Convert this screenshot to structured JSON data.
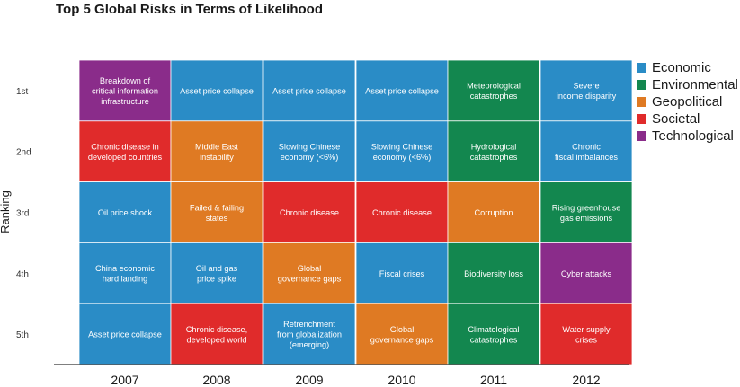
{
  "chart_data": {
    "type": "table",
    "title": "Top 5 Global Risks in Terms of Likelihood",
    "ylabel": "Ranking",
    "xlabel": "",
    "ranks": [
      "1st",
      "2nd",
      "3rd",
      "4th",
      "5th"
    ],
    "categories": [
      "2007",
      "2008",
      "2009",
      "2010",
      "2011",
      "2012"
    ],
    "legend_placement": "right",
    "legend": [
      {
        "name": "Economic",
        "color": "#2a8cc6"
      },
      {
        "name": "Environmental",
        "color": "#13874f"
      },
      {
        "name": "Geopolitical",
        "color": "#df7a23"
      },
      {
        "name": "Societal",
        "color": "#e02b2b"
      },
      {
        "name": "Technological",
        "color": "#8a2c8a"
      }
    ],
    "columns": [
      {
        "year": "2007",
        "cells": [
          {
            "label": "Breakdown of\ncritical information\ninfrastructure",
            "category": "Technological"
          },
          {
            "label": "Chronic disease in\ndeveloped countries",
            "category": "Societal"
          },
          {
            "label": "Oil price shock",
            "category": "Economic"
          },
          {
            "label": "China economic\nhard landing",
            "category": "Economic"
          },
          {
            "label": "Asset price collapse",
            "category": "Economic"
          }
        ]
      },
      {
        "year": "2008",
        "cells": [
          {
            "label": "Asset price collapse",
            "category": "Economic"
          },
          {
            "label": "Middle East\ninstability",
            "category": "Geopolitical"
          },
          {
            "label": "Failed & failing\nstates",
            "category": "Geopolitical"
          },
          {
            "label": "Oil and gas\nprice spike",
            "category": "Economic"
          },
          {
            "label": "Chronic disease,\ndeveloped world",
            "category": "Societal"
          }
        ]
      },
      {
        "year": "2009",
        "cells": [
          {
            "label": "Asset price collapse",
            "category": "Economic"
          },
          {
            "label": "Slowing Chinese\neconomy (<6%)",
            "category": "Economic"
          },
          {
            "label": "Chronic disease",
            "category": "Societal"
          },
          {
            "label": "Global\ngovernance gaps",
            "category": "Geopolitical"
          },
          {
            "label": "Retrenchment\nfrom globalization\n(emerging)",
            "category": "Economic"
          }
        ]
      },
      {
        "year": "2010",
        "cells": [
          {
            "label": "Asset price collapse",
            "category": "Economic"
          },
          {
            "label": "Slowing Chinese\neconomy (<6%)",
            "category": "Economic"
          },
          {
            "label": "Chronic disease",
            "category": "Societal"
          },
          {
            "label": "Fiscal crises",
            "category": "Economic"
          },
          {
            "label": "Global\ngovernance gaps",
            "category": "Geopolitical"
          }
        ]
      },
      {
        "year": "2011",
        "cells": [
          {
            "label": "Meteorological\ncatastrophes",
            "category": "Environmental"
          },
          {
            "label": "Hydrological\ncatastrophes",
            "category": "Environmental"
          },
          {
            "label": "Corruption",
            "category": "Geopolitical"
          },
          {
            "label": "Biodiversity loss",
            "category": "Environmental"
          },
          {
            "label": "Climatological\ncatastrophes",
            "category": "Environmental"
          }
        ]
      },
      {
        "year": "2012",
        "cells": [
          {
            "label": "Severe\nincome disparity",
            "category": "Economic"
          },
          {
            "label": "Chronic\nfiscal imbalances",
            "category": "Economic"
          },
          {
            "label": "Rising greenhouse\ngas emissions",
            "category": "Environmental"
          },
          {
            "label": "Cyber attacks",
            "category": "Technological"
          },
          {
            "label": "Water supply\ncrises",
            "category": "Societal"
          }
        ]
      }
    ]
  }
}
